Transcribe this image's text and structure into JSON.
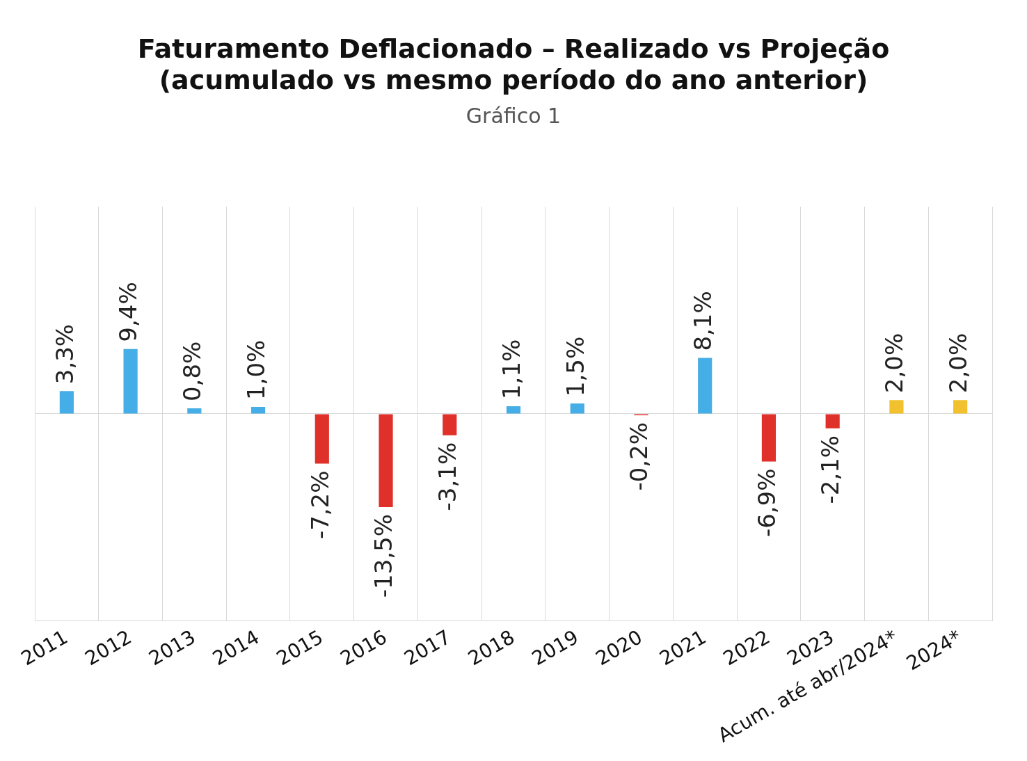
{
  "chart_data": {
    "type": "bar",
    "title": [
      "Faturamento Deflacionado – Realizado vs Projeção",
      "(acumulado vs mesmo período do ano anterior)"
    ],
    "subtitle": "Gráfico 1",
    "categories": [
      "2011",
      "2012",
      "2013",
      "2014",
      "2015",
      "2016",
      "2017",
      "2018",
      "2019",
      "2020",
      "2021",
      "2022",
      "2023",
      "Acum. até abr/2024*",
      "2024*"
    ],
    "values": [
      3.3,
      9.4,
      0.8,
      1.0,
      -7.2,
      -13.5,
      -3.1,
      1.1,
      1.5,
      -0.2,
      8.1,
      -6.9,
      -2.1,
      2.0,
      2.0
    ],
    "value_labels": [
      "3,3%",
      "9,4%",
      "0,8%",
      "1,0%",
      "-7,2%",
      "-13,5%",
      "-3,1%",
      "1,1%",
      "1,5%",
      "-0,2%",
      "8,1%",
      "-6,9%",
      "-2,1%",
      "2,0%",
      "2,0%"
    ],
    "colors": [
      "#45aee6",
      "#45aee6",
      "#45aee6",
      "#45aee6",
      "#e0302a",
      "#e0302a",
      "#e0302a",
      "#45aee6",
      "#45aee6",
      "#e0302a",
      "#45aee6",
      "#e0302a",
      "#e0302a",
      "#f2c12e",
      "#f2c12e"
    ],
    "ylim": [
      -30,
      30
    ],
    "yticks": [
      0
    ],
    "grid": true,
    "data_labels": true,
    "tick_labels": "x"
  }
}
